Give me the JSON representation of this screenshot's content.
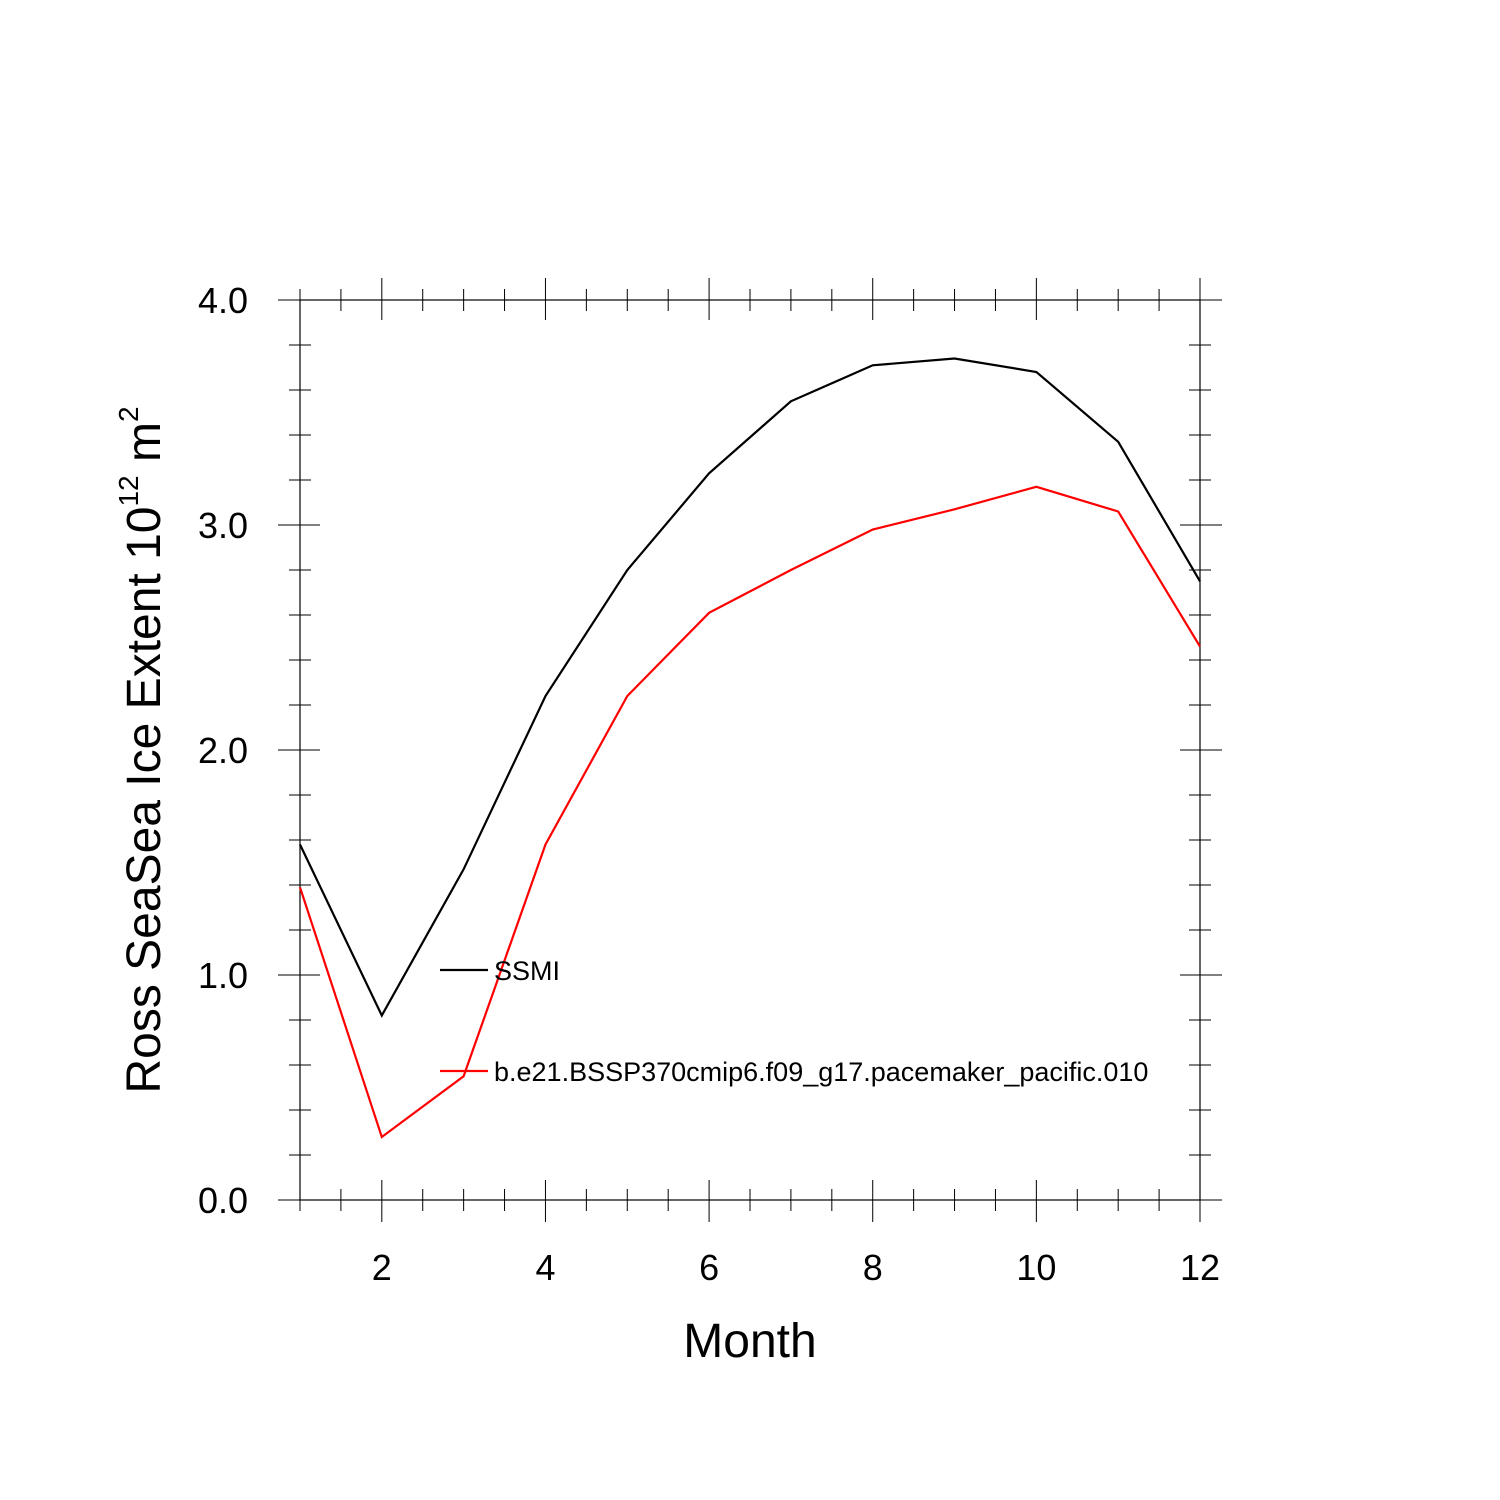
{
  "chart_data": {
    "type": "line",
    "title": "",
    "xlabel": "Month",
    "ylabel": {
      "prefix": "Ross SeaSea Ice Extent 10",
      "exp1": "12",
      "unit": " m",
      "exp2": "2"
    },
    "xlim": [
      1,
      12
    ],
    "ylim": [
      0.0,
      4.0
    ],
    "x_ticks": [
      "2",
      "4",
      "6",
      "8",
      "10",
      "12"
    ],
    "y_ticks": [
      "0.0",
      "1.0",
      "2.0",
      "3.0",
      "4.0"
    ],
    "x": [
      1,
      2,
      3,
      4,
      5,
      6,
      7,
      8,
      9,
      10,
      11,
      12
    ],
    "series": [
      {
        "name": "SSMI",
        "color": "#000000",
        "values": [
          1.58,
          0.82,
          1.47,
          2.24,
          2.8,
          3.23,
          3.55,
          3.71,
          3.74,
          3.68,
          3.37,
          2.75
        ]
      },
      {
        "name": "b.e21.BSSP370cmip6.f09_g17.pacemaker_pacific.010",
        "color": "#ff0000",
        "values": [
          1.39,
          0.28,
          0.55,
          1.58,
          2.24,
          2.61,
          2.8,
          2.98,
          3.07,
          3.17,
          3.06,
          2.46
        ]
      }
    ],
    "legend_position": "inside-lower-left"
  }
}
